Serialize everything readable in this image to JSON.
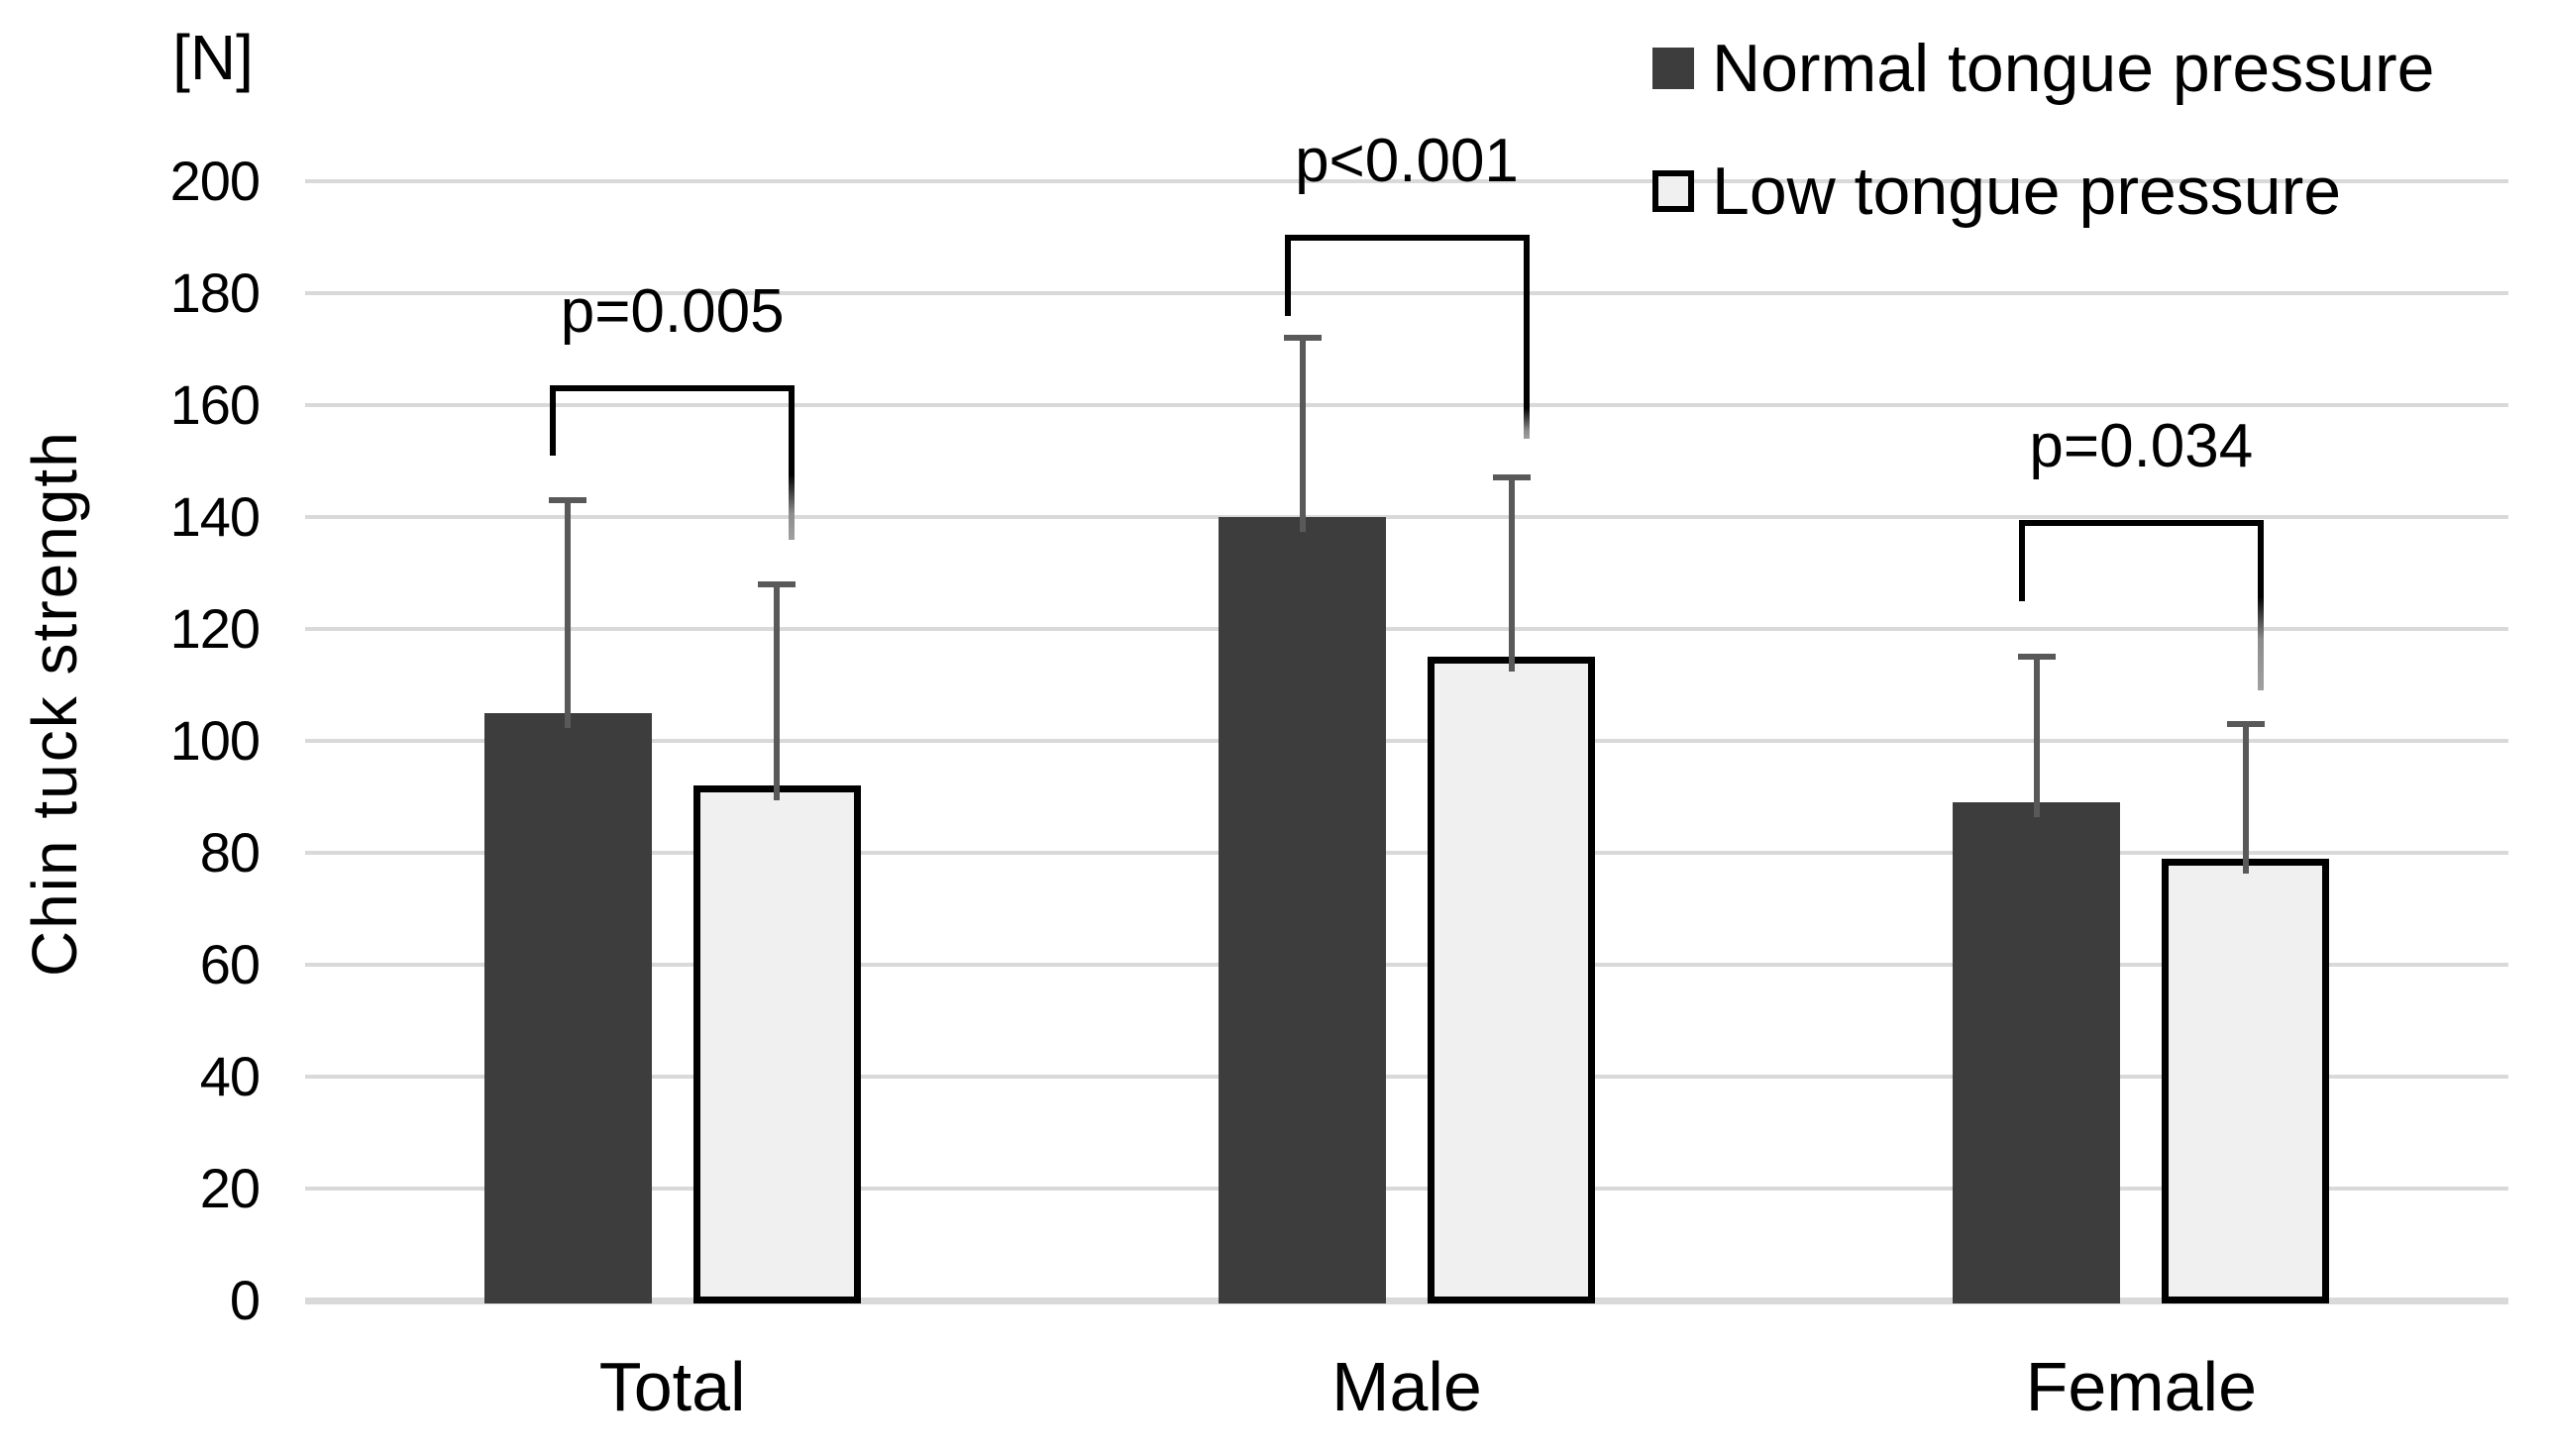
{
  "chart_data": {
    "type": "bar",
    "title": "",
    "categories": [
      "Total",
      "Male",
      "Female"
    ],
    "series": [
      {
        "name": "Normal tongue pressure",
        "values": [
          105,
          140,
          89
        ],
        "error_bar_tops": [
          143,
          172,
          115
        ]
      },
      {
        "name": "Low tongue pressure",
        "values": [
          92,
          115,
          79
        ],
        "error_bar_tops": [
          128,
          147,
          103
        ]
      }
    ],
    "ylabel": "Chin tuck strength",
    "y_unit": "[N]",
    "xlabel": "",
    "ylim": [
      0,
      200
    ],
    "yticks": [
      0,
      20,
      40,
      60,
      80,
      100,
      120,
      140,
      160,
      180,
      200
    ],
    "grid": true,
    "legend_position": "top-right",
    "significance_brackets": [
      {
        "category": "Total",
        "label": "p=0.005",
        "bracket_top": 163,
        "left_leg_end": 151,
        "right_leg_end": 136
      },
      {
        "category": "Male",
        "label": "p<0.001",
        "bracket_top": 190,
        "left_leg_end": 176,
        "right_leg_end": 154
      },
      {
        "category": "Female",
        "label": "p=0.034",
        "bracket_top": 139,
        "left_leg_end": 125,
        "right_leg_end": 109
      }
    ],
    "colors": {
      "normal_bar": "#3d3d3d",
      "low_bar_fill": "#f0f0f0",
      "low_bar_border": "#000000",
      "error_bar": "#595959",
      "gridline": "#d9d9d9",
      "axis_line": "#d9d9d9",
      "bracket": "#000000",
      "text": "#000000",
      "background": "#ffffff"
    }
  }
}
